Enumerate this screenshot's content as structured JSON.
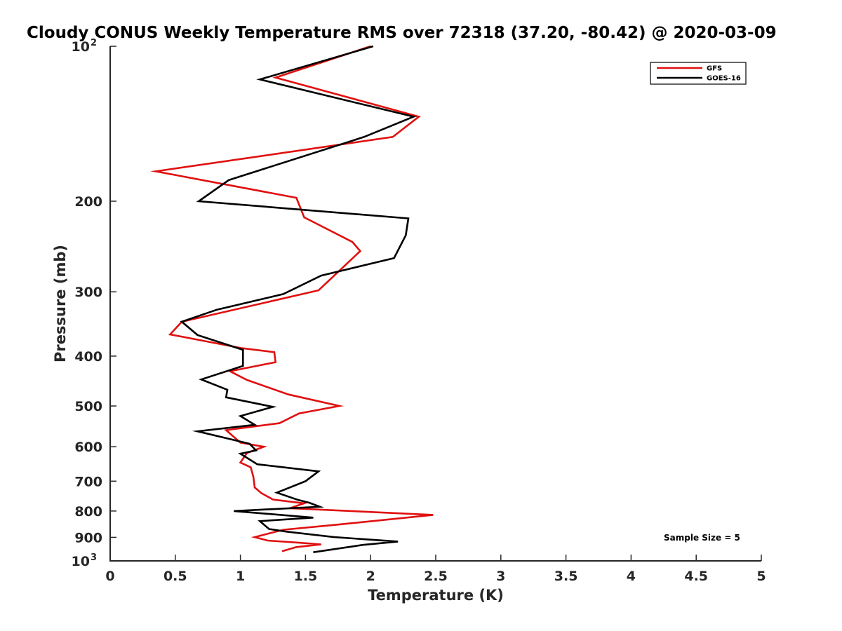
{
  "chart_data": {
    "type": "line",
    "title": "Cloudy CONUS Weekly Temperature RMS over 72318 (37.20, -80.42) @ 2020-03-09",
    "xlabel": "Temperature (K)",
    "ylabel": "Pressure (mb)",
    "xlim": [
      0,
      5
    ],
    "ylim": [
      100,
      1000
    ],
    "y_scale": "log",
    "y_reversed": true,
    "x_ticks": [
      "0",
      "0.5",
      "1",
      "1.5",
      "2",
      "2.5",
      "3",
      "3.5",
      "4",
      "4.5",
      "5"
    ],
    "y_ticks": [
      {
        "value": 100,
        "base": "10",
        "exp": "2"
      },
      {
        "value": 200,
        "label": "200"
      },
      {
        "value": 300,
        "label": "300"
      },
      {
        "value": 400,
        "label": "400"
      },
      {
        "value": 500,
        "label": "500"
      },
      {
        "value": 600,
        "label": "600"
      },
      {
        "value": 700,
        "label": "700"
      },
      {
        "value": 800,
        "label": "800"
      },
      {
        "value": 900,
        "label": "900"
      },
      {
        "value": 1000,
        "base": "10",
        "exp": "3"
      }
    ],
    "grid": false,
    "legend": "top-right",
    "annotation": "Sample Size = 5",
    "series": [
      {
        "name": "GFS",
        "color": "#e01010",
        "points": [
          [
            2.0,
            100
          ],
          [
            1.27,
            115
          ],
          [
            2.37,
            137
          ],
          [
            2.17,
            150
          ],
          [
            0.35,
            175
          ],
          [
            1.43,
            197
          ],
          [
            1.49,
            215
          ],
          [
            1.86,
            240
          ],
          [
            1.92,
            250
          ],
          [
            1.6,
            298
          ],
          [
            0.55,
            343
          ],
          [
            0.46,
            363
          ],
          [
            1.01,
            386
          ],
          [
            1.26,
            393
          ],
          [
            1.27,
            411
          ],
          [
            0.92,
            428
          ],
          [
            1.05,
            445
          ],
          [
            1.37,
            475
          ],
          [
            1.76,
            500
          ],
          [
            1.45,
            517
          ],
          [
            1.3,
            540
          ],
          [
            0.89,
            557
          ],
          [
            1.0,
            589
          ],
          [
            1.18,
            600
          ],
          [
            1.05,
            617
          ],
          [
            1.0,
            644
          ],
          [
            1.08,
            658
          ],
          [
            1.1,
            688
          ],
          [
            1.11,
            720
          ],
          [
            1.16,
            738
          ],
          [
            1.25,
            760
          ],
          [
            1.49,
            773
          ],
          [
            1.38,
            790
          ],
          [
            2.48,
            814
          ],
          [
            1.73,
            851
          ],
          [
            1.33,
            870
          ],
          [
            1.11,
            899
          ],
          [
            1.21,
            913
          ],
          [
            1.45,
            922
          ],
          [
            1.62,
            929
          ],
          [
            1.43,
            940
          ],
          [
            1.32,
            958
          ]
        ]
      },
      {
        "name": "GOES-16",
        "color": "#000000",
        "points": [
          [
            2.02,
            100
          ],
          [
            1.15,
            116
          ],
          [
            2.33,
            137
          ],
          [
            1.95,
            150
          ],
          [
            0.91,
            182
          ],
          [
            0.68,
            200
          ],
          [
            2.29,
            216
          ],
          [
            2.27,
            233
          ],
          [
            2.18,
            258
          ],
          [
            1.62,
            279
          ],
          [
            1.33,
            303
          ],
          [
            0.82,
            325
          ],
          [
            0.55,
            343
          ],
          [
            0.67,
            364
          ],
          [
            1.02,
            389
          ],
          [
            1.02,
            418
          ],
          [
            0.7,
            444
          ],
          [
            0.9,
            465
          ],
          [
            0.89,
            481
          ],
          [
            1.25,
            502
          ],
          [
            1.0,
            523
          ],
          [
            1.11,
            544
          ],
          [
            0.67,
            560
          ],
          [
            1.07,
            592
          ],
          [
            1.12,
            610
          ],
          [
            1.0,
            619
          ],
          [
            1.13,
            649
          ],
          [
            1.6,
            670
          ],
          [
            1.5,
            700
          ],
          [
            1.28,
            737
          ],
          [
            1.44,
            761
          ],
          [
            1.53,
            771
          ],
          [
            1.61,
            785
          ],
          [
            0.95,
            800
          ],
          [
            1.56,
            824
          ],
          [
            1.15,
            837
          ],
          [
            1.22,
            867
          ],
          [
            1.35,
            877
          ],
          [
            1.72,
            899
          ],
          [
            2.21,
            917
          ],
          [
            1.94,
            931
          ],
          [
            1.56,
            962
          ]
        ]
      }
    ]
  }
}
